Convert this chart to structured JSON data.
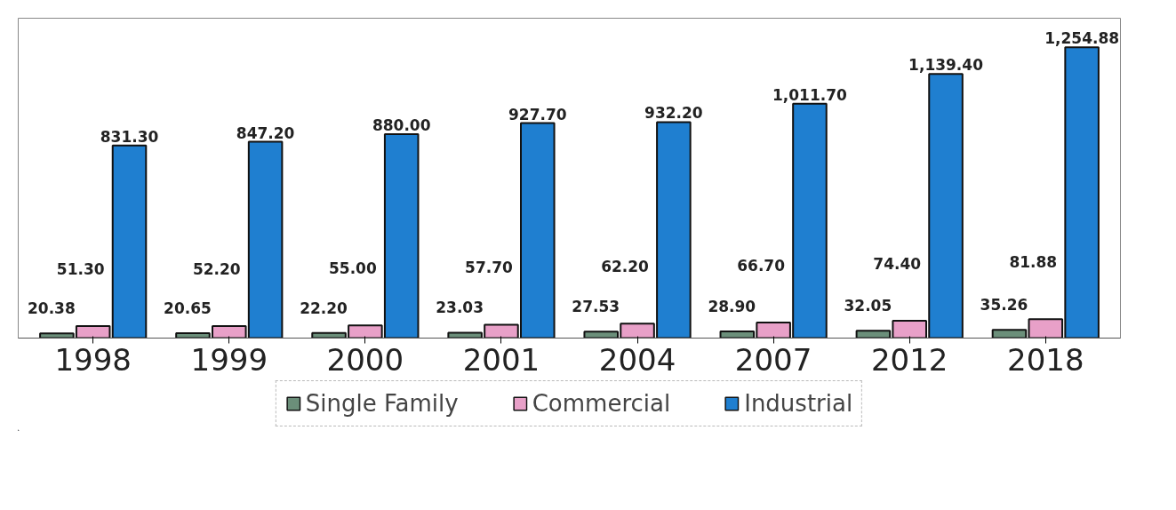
{
  "chart_data": {
    "type": "bar",
    "categories": [
      "1998",
      "1999",
      "2000",
      "2001",
      "2004",
      "2007",
      "2012",
      "2018"
    ],
    "series": [
      {
        "name": "Single Family",
        "color": "#6b8f7a",
        "values": [
          20.38,
          20.65,
          22.2,
          23.03,
          27.53,
          28.9,
          32.05,
          35.26
        ],
        "value_labels": [
          "20.38",
          "20.65",
          "22.20",
          "23.03",
          "27.53",
          "28.90",
          "32.05",
          "35.26"
        ]
      },
      {
        "name": "Commercial",
        "color": "#e8a0c8",
        "values": [
          51.3,
          52.2,
          55.0,
          57.7,
          62.2,
          66.7,
          74.4,
          81.88
        ],
        "value_labels": [
          "51.30",
          "52.20",
          "55.00",
          "57.70",
          "62.20",
          "66.70",
          "74.40",
          "81.88"
        ]
      },
      {
        "name": "Industrial",
        "color": "#1f7fd0",
        "values": [
          831.3,
          847.2,
          880.0,
          927.7,
          932.2,
          1011.7,
          1139.4,
          1254.88
        ],
        "value_labels": [
          "831.30",
          "847.20",
          "880.00",
          "927.70",
          "932.20",
          "1,011.70",
          "1,139.40",
          "1,254.88"
        ]
      }
    ],
    "grid": false,
    "legend": "bottom"
  }
}
